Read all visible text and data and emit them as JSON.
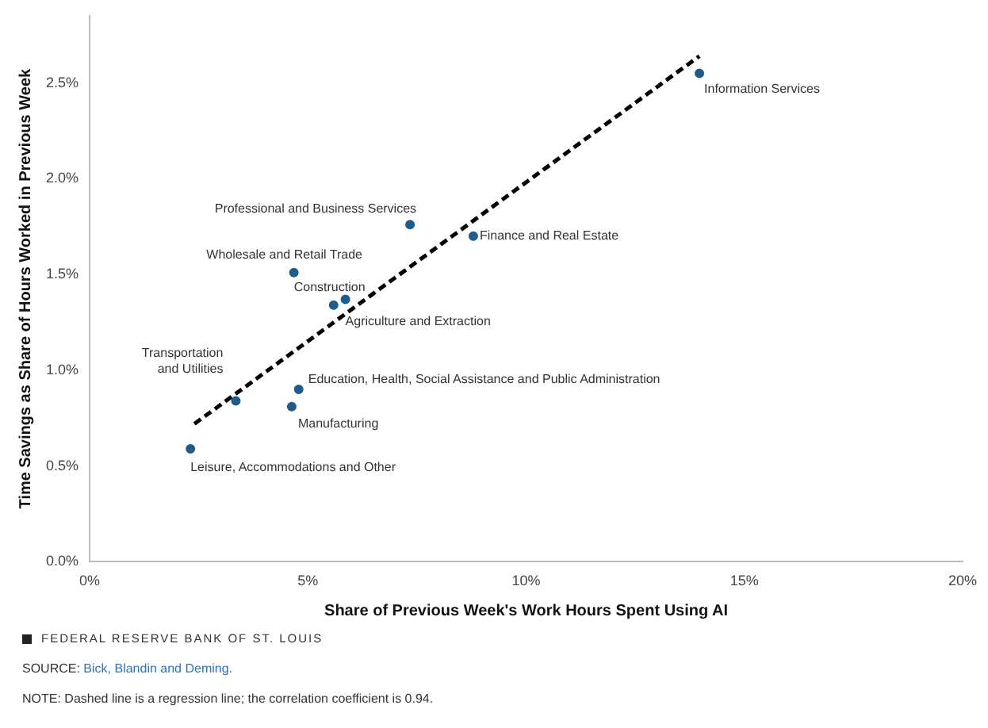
{
  "chart_data": {
    "type": "scatter",
    "xlabel": "Share of Previous Week's Work Hours Spent Using AI",
    "ylabel": "Time Savings as Share of Hours Worked in Previous Week",
    "xlim": [
      0,
      20
    ],
    "xticks": [
      {
        "value": 0,
        "label": "0%"
      },
      {
        "value": 5,
        "label": "5%"
      },
      {
        "value": 10,
        "label": "10%"
      },
      {
        "value": 15,
        "label": "15%"
      },
      {
        "value": 20,
        "label": "20%"
      }
    ],
    "ylim": [
      0,
      2.85
    ],
    "yticks": [
      {
        "value": 0,
        "label": "0.0%"
      },
      {
        "value": 0.5,
        "label": "0.5%"
      },
      {
        "value": 1,
        "label": "1.0%"
      },
      {
        "value": 1.5,
        "label": "1.5%"
      },
      {
        "value": 2,
        "label": "2.0%"
      },
      {
        "value": 2.5,
        "label": "2.5%"
      }
    ],
    "grid": false,
    "legend": false,
    "marker": "circle",
    "series": [
      {
        "type": "scatter",
        "color": "#1f5c8b",
        "x": [
          2.31,
          3.35,
          4.63,
          4.79,
          5.59,
          5.86,
          4.68,
          7.34,
          8.79,
          13.97
        ],
        "values": [
          0.59,
          0.84,
          0.81,
          0.9,
          1.34,
          1.37,
          1.51,
          1.76,
          1.7,
          2.55
        ],
        "value_labels": [
          "Leisure, Accommodations and Other",
          "Transportation\nand Utilities",
          "Manufacturing",
          "Education, Health, Social Assistance and Public Administration",
          "Construction",
          "Agriculture and Extraction",
          "Wholesale and Retail Trade",
          "Professional and Business Services",
          "Finance and Real Estate",
          "Information Services"
        ]
      },
      {
        "type": "line",
        "color": "#000000",
        "line_style": "dashed",
        "marker": "none",
        "x": [
          2.4,
          13.97
        ],
        "values": [
          0.72,
          2.64
        ]
      }
    ],
    "annotations": [
      "FEDERAL RESERVE BANK OF ST. LOUIS",
      "SOURCE: Bick, Blandin and Deming.",
      "NOTE: Dashed line is a regression line; the correlation coefficient is 0.94."
    ]
  }
}
